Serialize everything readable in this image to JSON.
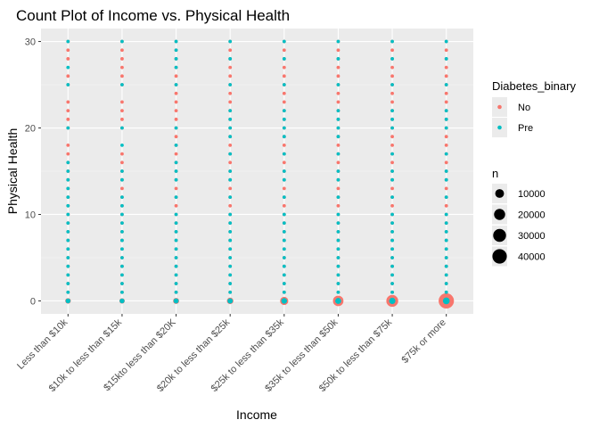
{
  "chart_data": {
    "type": "scatter",
    "title": "Count Plot of Income vs. Physical Health",
    "xlabel": "Income",
    "ylabel": "Physical Health",
    "categories": [
      "Less than $10k",
      "$10k to less than $15k",
      "$15kto less than $20K",
      "$20k to less than $25k",
      "$25k to less than $35k",
      "$35k to less than $50k",
      "$50k to less than $75k",
      "$75k or more"
    ],
    "ylim": [
      -1.5,
      31.5
    ],
    "yticks": [
      0,
      10,
      20,
      30
    ],
    "grid": true,
    "legend_position": "right",
    "color_legend": {
      "title": "Diabetes_binary",
      "entries": [
        {
          "label": "No",
          "color": "#f8766d"
        },
        {
          "label": "Pre",
          "color": "#00bfc4"
        }
      ]
    },
    "size_legend": {
      "title": "n",
      "values": [
        10000,
        20000,
        30000,
        40000
      ],
      "labels": [
        "10000",
        "20000",
        "30000",
        "40000"
      ]
    },
    "series": [
      {
        "name": "No",
        "color": "#f8766d",
        "points": [
          {
            "x": 0,
            "y": [
              0,
              1,
              2,
              3,
              4,
              5,
              6,
              7,
              8,
              9,
              10,
              11,
              12,
              13,
              14,
              15,
              16,
              17,
              18,
              20,
              21,
              22,
              23,
              25,
              26,
              28,
              29,
              30
            ],
            "n": 1800
          },
          {
            "x": 1,
            "y": [
              0,
              1,
              2,
              3,
              4,
              5,
              6,
              7,
              8,
              9,
              10,
              11,
              12,
              13,
              14,
              15,
              16,
              17,
              20,
              21,
              22,
              23,
              25,
              26,
              27,
              28,
              29,
              30
            ],
            "n": 1500
          },
          {
            "x": 2,
            "y": [
              0,
              1,
              2,
              3,
              4,
              5,
              6,
              7,
              8,
              9,
              10,
              11,
              12,
              13,
              14,
              15,
              16,
              17,
              18,
              19,
              20,
              21,
              22,
              23,
              24,
              25,
              26,
              27,
              28,
              29,
              30
            ],
            "n": 2500
          },
          {
            "x": 3,
            "y": [
              0,
              1,
              2,
              3,
              4,
              5,
              6,
              7,
              8,
              9,
              10,
              11,
              12,
              13,
              14,
              15,
              16,
              17,
              18,
              19,
              20,
              21,
              22,
              23,
              24,
              25,
              26,
              27,
              28,
              29,
              30
            ],
            "n": 3500
          },
          {
            "x": 4,
            "y": [
              0,
              1,
              2,
              3,
              4,
              5,
              6,
              7,
              8,
              9,
              10,
              11,
              12,
              13,
              14,
              15,
              16,
              17,
              18,
              19,
              20,
              21,
              22,
              23,
              24,
              25,
              26,
              27,
              28,
              29,
              30
            ],
            "n": 8000
          },
          {
            "x": 5,
            "y": [
              0,
              1,
              2,
              3,
              4,
              5,
              6,
              7,
              8,
              9,
              10,
              11,
              12,
              13,
              14,
              15,
              16,
              17,
              18,
              19,
              20,
              21,
              22,
              23,
              24,
              25,
              26,
              27,
              28,
              29,
              30
            ],
            "n": 17000
          },
          {
            "x": 6,
            "y": [
              0,
              1,
              2,
              3,
              4,
              5,
              6,
              7,
              8,
              9,
              10,
              11,
              12,
              13,
              14,
              15,
              16,
              17,
              18,
              19,
              20,
              21,
              22,
              23,
              24,
              25,
              26,
              27,
              28,
              29,
              30
            ],
            "n": 24000
          },
          {
            "x": 7,
            "y": [
              0,
              1,
              2,
              3,
              4,
              5,
              6,
              7,
              8,
              9,
              10,
              11,
              12,
              13,
              14,
              15,
              16,
              17,
              18,
              19,
              20,
              21,
              22,
              23,
              24,
              25,
              26,
              27,
              28,
              29,
              30
            ],
            "n": 47000
          }
        ]
      },
      {
        "name": "Pre",
        "color": "#00bfc4",
        "points": [
          {
            "x": 0,
            "y": [
              0,
              1,
              2,
              3,
              4,
              5,
              6,
              7,
              8,
              9,
              10,
              11,
              12,
              13,
              14,
              15,
              16,
              20,
              25,
              27,
              30
            ],
            "n": 900
          },
          {
            "x": 1,
            "y": [
              0,
              1,
              2,
              3,
              4,
              5,
              6,
              7,
              8,
              9,
              10,
              11,
              12,
              14,
              15,
              18,
              20,
              25,
              30
            ],
            "n": 900
          },
          {
            "x": 2,
            "y": [
              0,
              1,
              2,
              3,
              4,
              5,
              6,
              7,
              8,
              9,
              10,
              12,
              14,
              15,
              16,
              18,
              20,
              25,
              27,
              28,
              29,
              30
            ],
            "n": 1200
          },
          {
            "x": 3,
            "y": [
              0,
              1,
              2,
              3,
              4,
              5,
              6,
              7,
              8,
              9,
              10,
              12,
              14,
              15,
              17,
              19,
              20,
              21,
              22,
              25,
              28,
              30
            ],
            "n": 1500
          },
          {
            "x": 4,
            "y": [
              0,
              1,
              2,
              3,
              4,
              5,
              6,
              7,
              8,
              9,
              10,
              12,
              14,
              15,
              17,
              19,
              20,
              21,
              22,
              25,
              28,
              30
            ],
            "n": 2000
          },
          {
            "x": 5,
            "y": [
              0,
              1,
              2,
              3,
              4,
              5,
              6,
              7,
              8,
              9,
              10,
              12,
              14,
              15,
              17,
              19,
              20,
              21,
              22,
              25,
              28,
              30
            ],
            "n": 2500
          },
          {
            "x": 6,
            "y": [
              0,
              1,
              2,
              3,
              4,
              5,
              6,
              7,
              8,
              9,
              10,
              12,
              14,
              15,
              17,
              20,
              21,
              22,
              25,
              28,
              30
            ],
            "n": 3000
          },
          {
            "x": 7,
            "y": [
              0,
              1,
              2,
              3,
              4,
              5,
              6,
              7,
              8,
              9,
              10,
              12,
              14,
              15,
              17,
              20,
              21,
              22,
              25,
              28,
              30
            ],
            "n": 4000
          }
        ]
      }
    ]
  }
}
